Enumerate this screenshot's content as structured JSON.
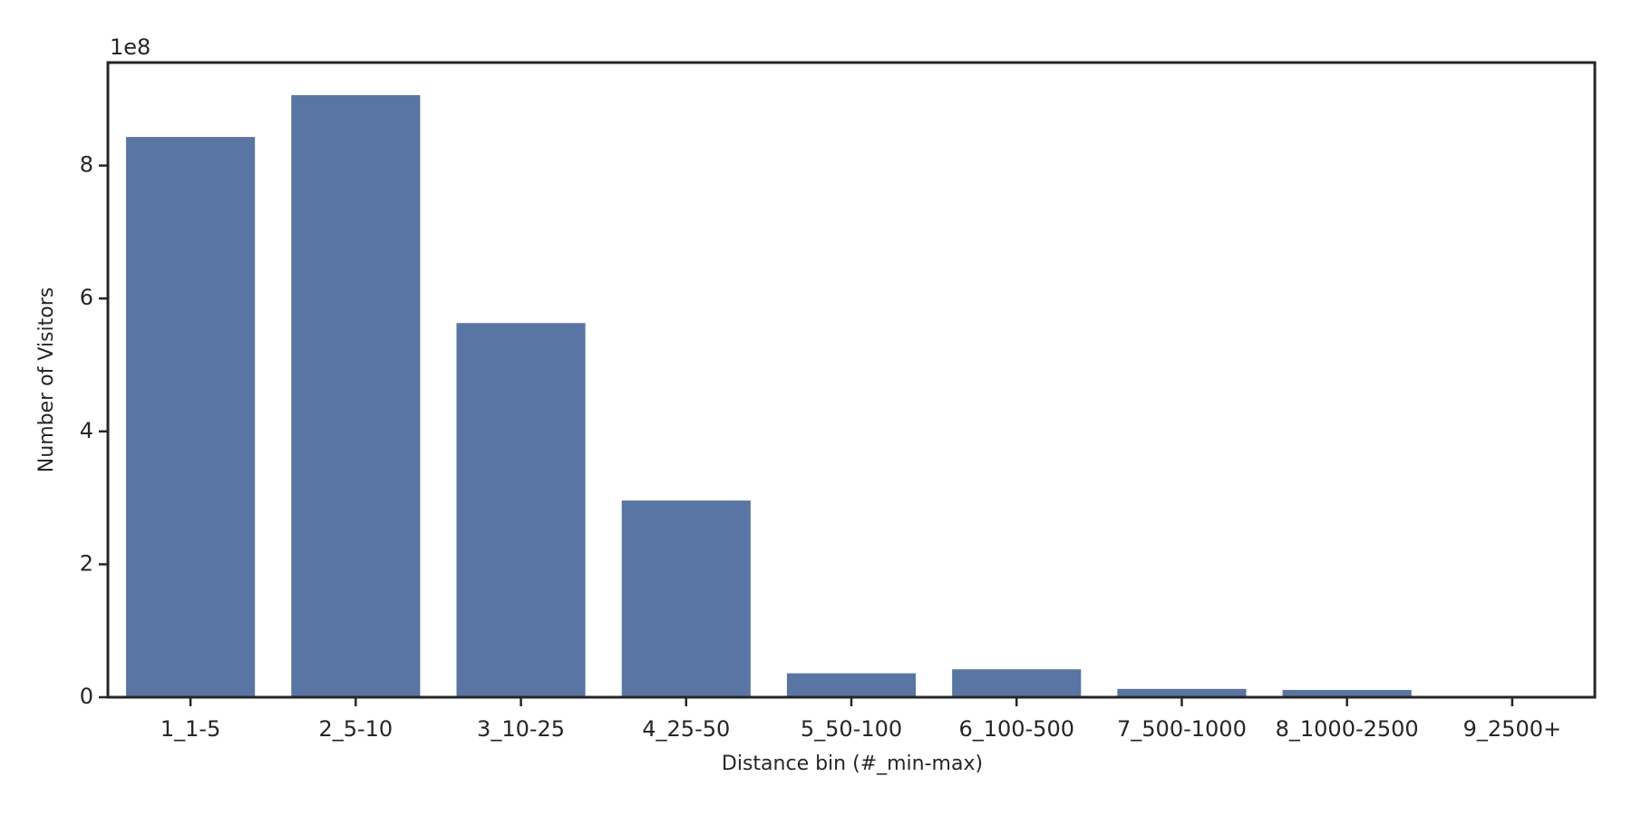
{
  "chart_data": {
    "type": "bar",
    "x_label": "Distance bin (#_min-max)",
    "y_label": "Number of Visitors",
    "y_offset_label": "1e8",
    "categories": [
      "1_1-5",
      "2_5-10",
      "3_10-25",
      "4_25-50",
      "5_50-100",
      "6_100-500",
      "7_500-1000",
      "8_1000-2500",
      "9_2500+"
    ],
    "values": [
      8.43,
      9.06,
      5.63,
      2.96,
      0.36,
      0.42,
      0.125,
      0.11,
      0.003
    ],
    "color": "#5875a4",
    "ylim": [
      0,
      9.55
    ],
    "yticks": [
      0,
      2,
      4,
      6,
      8
    ]
  }
}
